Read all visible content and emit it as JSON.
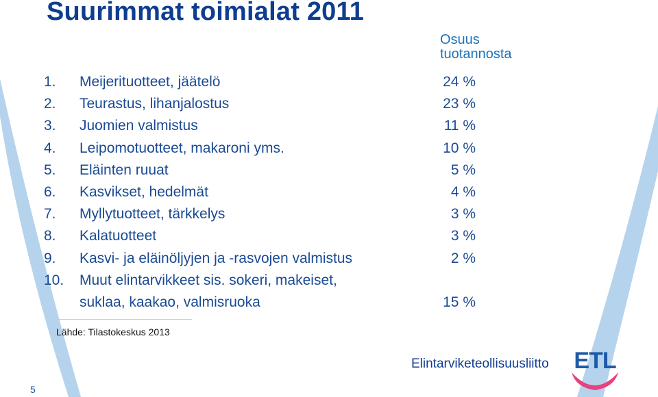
{
  "title": "Suurimmat toimialat 2011",
  "column_header": [
    "Osuus",
    "tuotannosta"
  ],
  "items": [
    {
      "num": "1.",
      "label": [
        "Meijerituotteet, jäätelö"
      ],
      "value": "24 %"
    },
    {
      "num": "2.",
      "label": [
        "Teurastus, lihanjalostus"
      ],
      "value": "23 %"
    },
    {
      "num": "3.",
      "label": [
        "Juomien valmistus"
      ],
      "value": "11 %"
    },
    {
      "num": "4.",
      "label": [
        "Leipomotuotteet, makaroni yms."
      ],
      "value": "10 %"
    },
    {
      "num": "5.",
      "label": [
        "Eläinten ruuat"
      ],
      "value": "5 %"
    },
    {
      "num": "6.",
      "label": [
        "Kasvikset, hedelmät"
      ],
      "value": "4 %"
    },
    {
      "num": "7.",
      "label": [
        "Myllytuotteet, tärkkelys"
      ],
      "value": "3 %"
    },
    {
      "num": "8.",
      "label": [
        "Kalatuotteet"
      ],
      "value": "3 %"
    },
    {
      "num": "9.",
      "label": [
        "Kasvi- ja eläinöljyjen ja -rasvojen valmistus"
      ],
      "value": "2 %"
    },
    {
      "num": "10.",
      "label": [
        "Muut elintarvikkeet sis. sokeri, makeiset,",
        "suklaa, kaakao, valmisruoka"
      ],
      "value": "15 %"
    }
  ],
  "source": "Lähde: Tilastokeskus 2013",
  "organization": "Elintarviketeollisuusliitto",
  "logo_text": "ETL",
  "page_number": "5",
  "colors": {
    "title": "#0f3d8f",
    "text": "#1a4a93",
    "header": "#1d72b8",
    "arc": "#b5d3ec",
    "logo_blue": "#1f5aa8",
    "logo_pink": "#e8417d"
  }
}
